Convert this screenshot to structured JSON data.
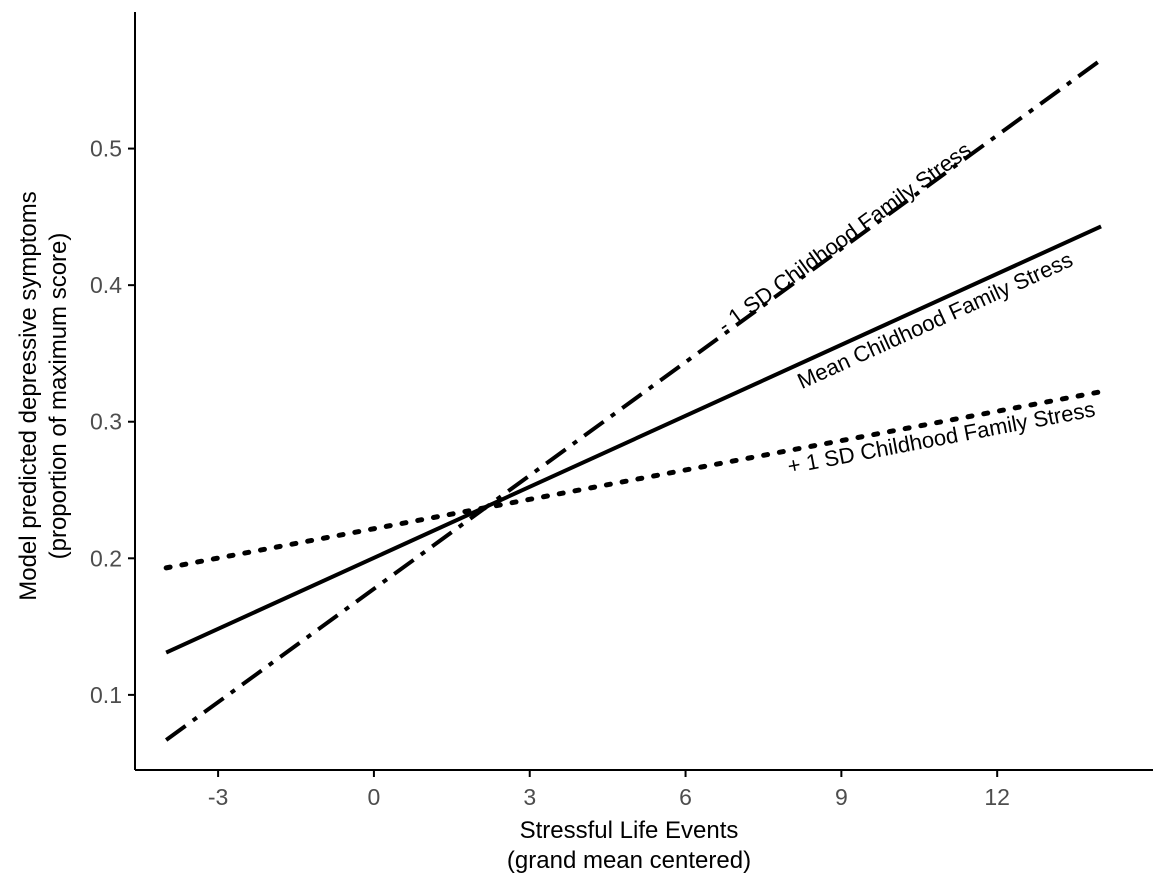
{
  "chart_data": {
    "type": "line",
    "title": "",
    "xlabel": "Stressful Life Events",
    "xlabel_sub": "(grand mean centered)",
    "ylabel": "Model predicted depressive symptoms",
    "ylabel_sub": "(proportion of maximum score)",
    "xlim": [
      -4.6,
      15.0
    ],
    "ylim": [
      0.045,
      0.6
    ],
    "x_ticks": [
      -3,
      0,
      3,
      6,
      9,
      12
    ],
    "x_tick_labels": [
      "-3",
      "0",
      "3",
      "6",
      "9",
      "12"
    ],
    "y_ticks": [
      0.1,
      0.2,
      0.3,
      0.4,
      0.5
    ],
    "y_tick_labels": [
      "0.1",
      "0.2",
      "0.3",
      "0.4",
      "0.5"
    ],
    "grid": false,
    "legend": "none",
    "series": [
      {
        "name": "- 1 SD Childhood Family Stress",
        "line_style": "dashdot",
        "x": [
          -4,
          14
        ],
        "y": [
          0.067,
          0.565
        ]
      },
      {
        "name": "Mean Childhood Family Stress",
        "line_style": "solid",
        "x": [
          -4,
          14
        ],
        "y": [
          0.131,
          0.443
        ]
      },
      {
        "name": "+ 1 SD Childhood Family Stress",
        "line_style": "dotted",
        "x": [
          -4,
          14
        ],
        "y": [
          0.193,
          0.322
        ]
      }
    ],
    "colors": {
      "line": "#000000",
      "axis": "#000000",
      "tick_text": "#4d4d4d"
    }
  }
}
